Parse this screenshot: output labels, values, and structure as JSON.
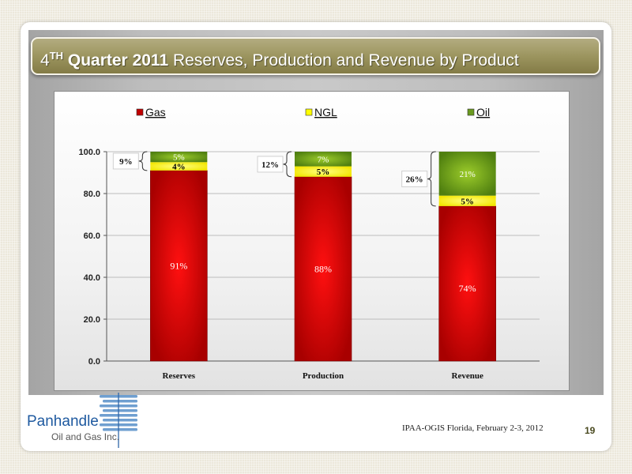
{
  "slide": {
    "title": {
      "num": "4",
      "sup": "TH",
      "bold": "Quarter 2011",
      "rest": "Reserves, Production and Revenue by Product"
    },
    "footer": "IPAA-OGIS Florida, February 2-3, 2012",
    "page_number": "19",
    "logo": {
      "line1": "Panhandle",
      "line2": "Oil and Gas Inc."
    }
  },
  "chart_data": {
    "type": "bar",
    "stacked": true,
    "title": "",
    "xlabel": "",
    "ylabel": "",
    "ylim": [
      0,
      100
    ],
    "yticks": [
      "0.0",
      "20.0",
      "40.0",
      "60.0",
      "80.0",
      "100.0"
    ],
    "categories": [
      "Reserves",
      "Production",
      "Revenue"
    ],
    "series": [
      {
        "name": "Gas",
        "color": "#c00000",
        "values": [
          91,
          88,
          74
        ],
        "labels": [
          "91%",
          "88%",
          "74%"
        ]
      },
      {
        "name": "NGL",
        "color": "#ffff00",
        "values": [
          4,
          5,
          5
        ],
        "labels": [
          "4%",
          "5%",
          "5%"
        ]
      },
      {
        "name": "Oil",
        "color": "#6a9a1f",
        "values": [
          5,
          7,
          21
        ],
        "labels": [
          "5%",
          "7%",
          "21%"
        ]
      }
    ],
    "bracket_labels": [
      "9%",
      "12%",
      "26%"
    ],
    "legend_position": "top",
    "grid": true
  }
}
